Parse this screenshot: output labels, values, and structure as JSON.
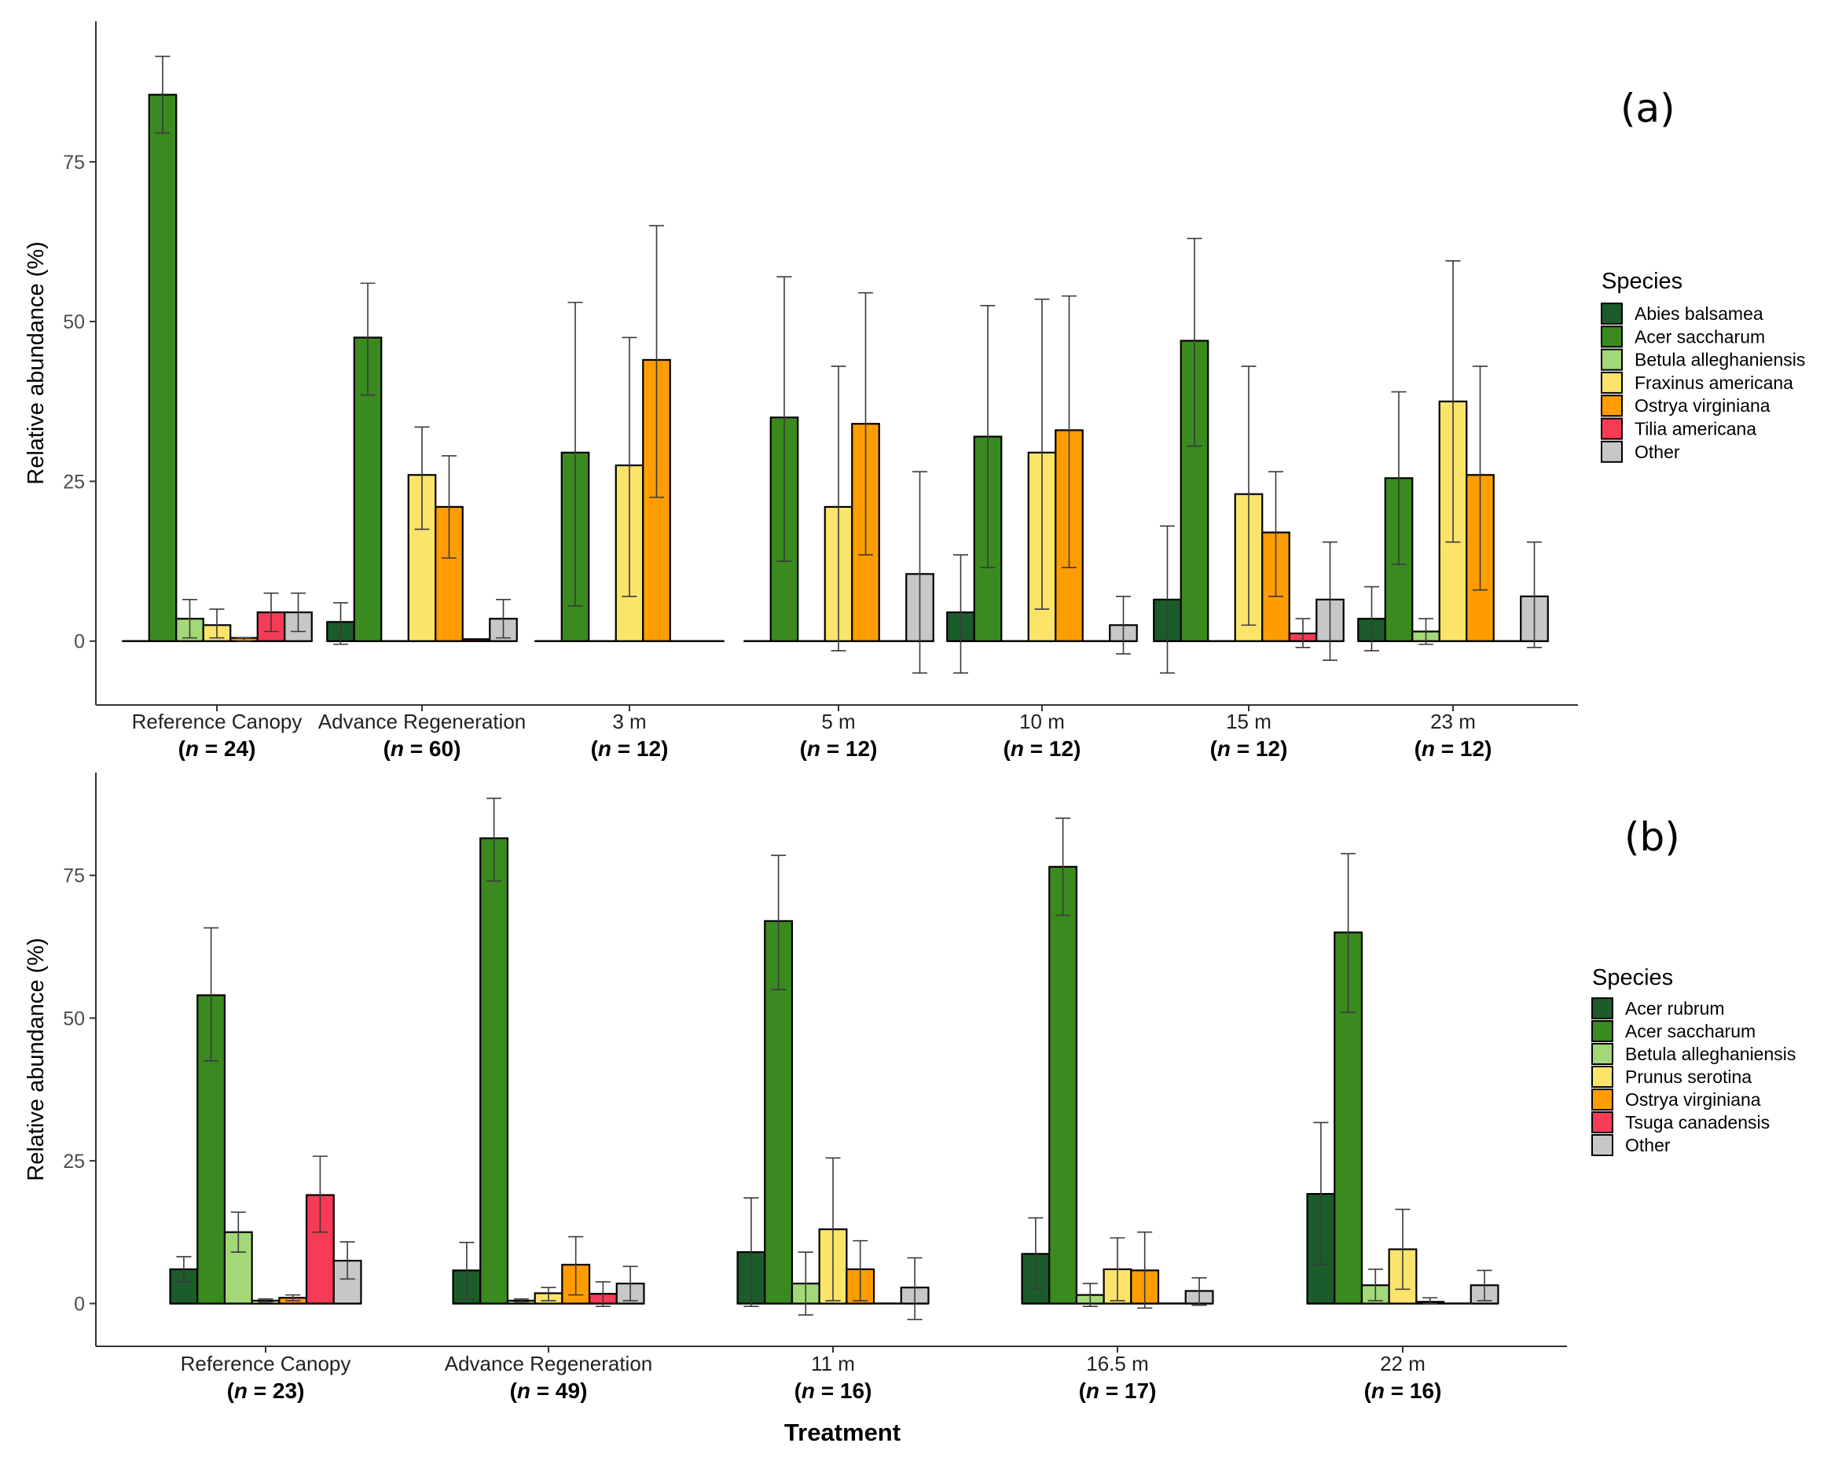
{
  "figure": {
    "xlabel": "Treatment",
    "colors": {
      "green_dark": "#1a5c2a",
      "green": "#3a8a1f",
      "green_light": "#a3d878",
      "yellow": "#fce46a",
      "orange": "#ff9d00",
      "red": "#f73a55",
      "grey": "#c7c7c7",
      "error_bar": "#3a3a3a"
    }
  },
  "chart_data": [
    {
      "type": "bar",
      "panel_tag": "(a)",
      "ylabel": "Relative abundance (%)",
      "ylim": [
        -10,
        97
      ],
      "yticks": [
        0,
        25,
        50,
        75
      ],
      "legend_title": "Species",
      "categories": [
        "Reference Canopy",
        "Advance Regeneration",
        "3 m",
        "5 m",
        "10 m",
        "15 m",
        "23 m"
      ],
      "n_labels": [
        "24",
        "60",
        "12",
        "12",
        "12",
        "12",
        "12"
      ],
      "series": [
        {
          "name": "Abies balsamea",
          "color": "#1a5c2a",
          "values": [
            null,
            3,
            null,
            null,
            4.5,
            6.5,
            3.5
          ],
          "err_low": [
            null,
            -0.5,
            null,
            null,
            -5,
            -5,
            -1.5
          ],
          "err_high": [
            null,
            6,
            null,
            null,
            13.5,
            18,
            8.5
          ]
        },
        {
          "name": "Acer saccharum",
          "color": "#3a8a1f",
          "values": [
            85.5,
            47.5,
            29.5,
            35,
            32,
            47,
            25.5
          ],
          "err_low": [
            79.5,
            38.5,
            5.5,
            12.5,
            11.5,
            30.5,
            12
          ],
          "err_high": [
            91.5,
            56,
            53,
            57,
            52.5,
            63,
            39
          ]
        },
        {
          "name": "Betula alleghaniensis",
          "color": "#a3d878",
          "values": [
            3.5,
            null,
            null,
            null,
            null,
            null,
            1.5
          ],
          "err_low": [
            0.5,
            null,
            null,
            null,
            null,
            null,
            -0.5
          ],
          "err_high": [
            6.5,
            null,
            null,
            null,
            null,
            null,
            3.5
          ]
        },
        {
          "name": "Fraxinus americana",
          "color": "#fce46a",
          "values": [
            2.5,
            26,
            27.5,
            21,
            29.5,
            23,
            37.5
          ],
          "err_low": [
            0.5,
            17.5,
            7,
            -1.5,
            5,
            2.5,
            15.5
          ],
          "err_high": [
            5,
            33.5,
            47.5,
            43,
            53.5,
            43,
            59.5
          ]
        },
        {
          "name": "Ostrya virginiana",
          "color": "#ff9d00",
          "values": [
            0.5,
            21,
            44,
            34,
            33,
            17,
            26
          ],
          "err_low": [
            0,
            13,
            22.5,
            13.5,
            11.5,
            7,
            8
          ],
          "err_high": [
            0.5,
            29,
            65,
            54.5,
            54,
            26.5,
            43
          ]
        },
        {
          "name": "Tilia americana",
          "color": "#f73a55",
          "values": [
            4.5,
            0.3,
            null,
            null,
            null,
            1.2,
            null
          ],
          "err_low": [
            1.5,
            null,
            null,
            null,
            null,
            -1,
            null
          ],
          "err_high": [
            7.5,
            null,
            null,
            null,
            null,
            3.5,
            null
          ]
        },
        {
          "name": "Other",
          "color": "#c7c7c7",
          "values": [
            4.5,
            3.5,
            null,
            10.5,
            2.5,
            6.5,
            7
          ],
          "err_low": [
            1.5,
            0.5,
            null,
            -5,
            -2,
            -3,
            -1
          ],
          "err_high": [
            7.5,
            6.5,
            null,
            26.5,
            7,
            15.5,
            15.5
          ]
        }
      ]
    },
    {
      "type": "bar",
      "panel_tag": "(b)",
      "ylabel": "Relative abundance (%)",
      "ylim": [
        -7.5,
        93
      ],
      "yticks": [
        0,
        25,
        50,
        75
      ],
      "legend_title": "Species",
      "categories": [
        "Reference Canopy",
        "Advance Regeneration",
        "11 m",
        "16.5 m",
        "22 m"
      ],
      "n_labels": [
        "23",
        "49",
        "16",
        "17",
        "16"
      ],
      "series": [
        {
          "name": "Acer rubrum",
          "color": "#1a5c2a",
          "values": [
            6,
            5.8,
            9,
            8.7,
            19.2
          ],
          "err_low": [
            3.8,
            0.8,
            -0.5,
            2.5,
            6.8
          ],
          "err_high": [
            8.2,
            10.7,
            18.5,
            15,
            31.7
          ]
        },
        {
          "name": "Acer saccharum",
          "color": "#3a8a1f",
          "values": [
            54,
            81.5,
            67,
            76.5,
            65
          ],
          "err_low": [
            42.5,
            74,
            55,
            68,
            51
          ],
          "err_high": [
            65.8,
            88.5,
            78.5,
            85,
            78.8
          ]
        },
        {
          "name": "Betula alleghaniensis",
          "color": "#a3d878",
          "values": [
            12.5,
            0.5,
            3.5,
            1.5,
            3.2
          ],
          "err_low": [
            9,
            0.2,
            -2,
            -0.5,
            0.5
          ],
          "err_high": [
            16,
            0.8,
            9,
            3.5,
            6
          ]
        },
        {
          "name": "Prunus serotina",
          "color": "#fce46a",
          "values": [
            0.5,
            1.8,
            13,
            6,
            9.5
          ],
          "err_low": [
            0.2,
            0.5,
            0.5,
            0.5,
            2.5
          ],
          "err_high": [
            0.8,
            2.8,
            25.5,
            11.5,
            16.5
          ]
        },
        {
          "name": "Ostrya virginiana",
          "color": "#ff9d00",
          "values": [
            1,
            6.8,
            6,
            5.8,
            0.3
          ],
          "err_low": [
            0.5,
            1.5,
            0.5,
            -0.8,
            0
          ],
          "err_high": [
            1.5,
            11.7,
            11,
            12.5,
            1
          ]
        },
        {
          "name": "Tsuga canadensis",
          "color": "#f73a55",
          "values": [
            19,
            1.7,
            null,
            null,
            null
          ],
          "err_low": [
            12.5,
            -0.5,
            null,
            null,
            null
          ],
          "err_high": [
            25.8,
            3.8,
            null,
            null,
            null
          ]
        },
        {
          "name": "Other",
          "color": "#c7c7c7",
          "values": [
            7.5,
            3.5,
            2.8,
            2.2,
            3.2
          ],
          "err_low": [
            4.3,
            0.5,
            -2.8,
            -0.3,
            0.5
          ],
          "err_high": [
            10.8,
            6.5,
            8,
            4.5,
            5.8
          ]
        }
      ]
    }
  ]
}
